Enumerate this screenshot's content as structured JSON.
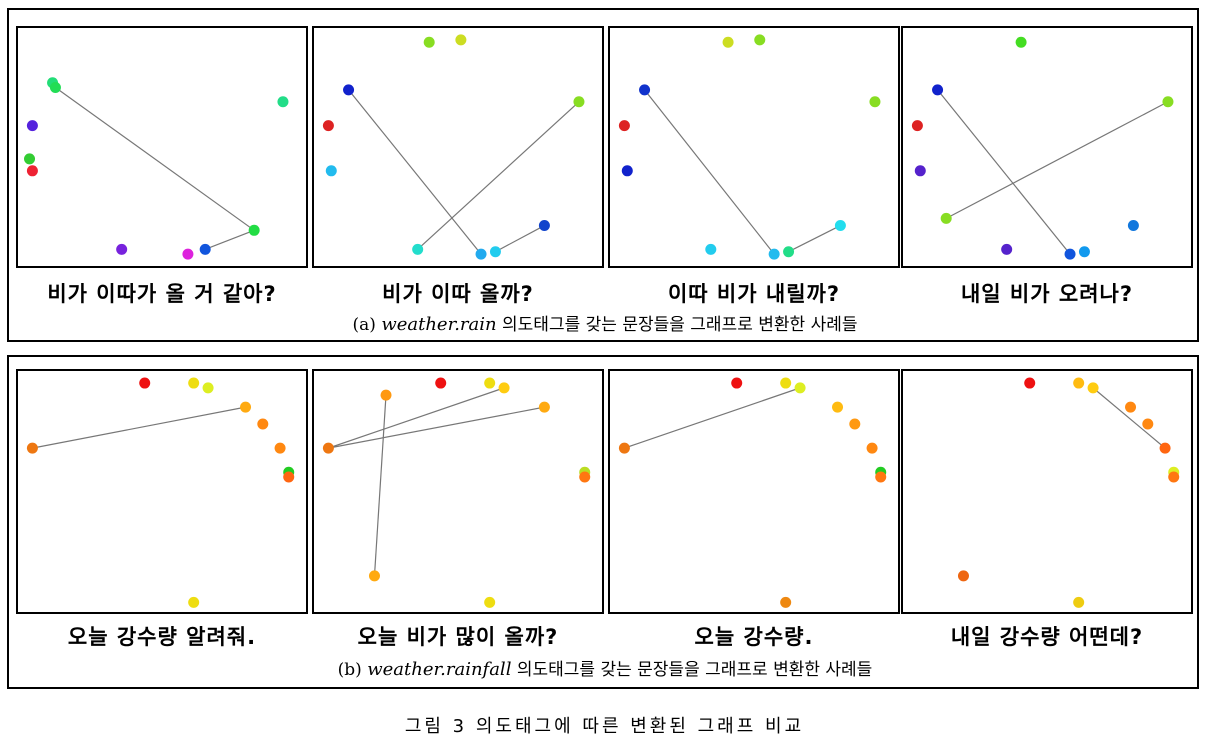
{
  "figure_caption": "그림 3 의도태그에 따른 변환된 그래프 비교",
  "groups": [
    {
      "label_prefix": "(a)",
      "tag": "weather.rain",
      "label_suffix": "의도태그를 갖는 문장들을 그래프로 변환한 사례들",
      "panels": [
        {
          "sentence": "비가 이따가 올 거 같아?"
        },
        {
          "sentence": "비가 이따 올까?"
        },
        {
          "sentence": "이따 비가 내릴까?"
        },
        {
          "sentence": "내일 비가 오려나?"
        }
      ]
    },
    {
      "label_prefix": "(b)",
      "tag": "weather.rainfall",
      "label_suffix": "의도태그를 갖는 문장들을 그래프로 변환한 사례들",
      "panels": [
        {
          "sentence": "오늘 강수량 알려줘."
        },
        {
          "sentence": "오늘 비가 많이 올까?"
        },
        {
          "sentence": "오늘 강수량."
        },
        {
          "sentence": "내일 강수량 어떤데?"
        }
      ]
    }
  ],
  "chart_data": [
    {
      "type": "scatter",
      "title": "비가 이따가 올 거 같아?",
      "points": [
        {
          "x": 0.12,
          "y": 0.23,
          "color": "#22dd77"
        },
        {
          "x": 0.13,
          "y": 0.25,
          "color": "#22dd55"
        },
        {
          "x": 0.92,
          "y": 0.31,
          "color": "#22dd88"
        },
        {
          "x": 0.05,
          "y": 0.41,
          "color": "#5522dd"
        },
        {
          "x": 0.04,
          "y": 0.55,
          "color": "#33cc33"
        },
        {
          "x": 0.05,
          "y": 0.6,
          "color": "#ee2233"
        },
        {
          "x": 0.82,
          "y": 0.85,
          "color": "#22dd44"
        },
        {
          "x": 0.36,
          "y": 0.93,
          "color": "#7722dd"
        },
        {
          "x": 0.65,
          "y": 0.93,
          "color": "#1155dd"
        },
        {
          "x": 0.59,
          "y": 0.95,
          "color": "#dd22dd"
        }
      ],
      "edges": [
        [
          1,
          6
        ],
        [
          6,
          8
        ]
      ]
    },
    {
      "type": "scatter",
      "title": "비가 이따 올까?",
      "points": [
        {
          "x": 0.4,
          "y": 0.06,
          "color": "#88dd22"
        },
        {
          "x": 0.51,
          "y": 0.05,
          "color": "#ccdd22"
        },
        {
          "x": 0.12,
          "y": 0.26,
          "color": "#1122cc"
        },
        {
          "x": 0.92,
          "y": 0.31,
          "color": "#88dd22"
        },
        {
          "x": 0.05,
          "y": 0.41,
          "color": "#dd2222"
        },
        {
          "x": 0.06,
          "y": 0.6,
          "color": "#22bbee"
        },
        {
          "x": 0.8,
          "y": 0.83,
          "color": "#1144cc"
        },
        {
          "x": 0.36,
          "y": 0.93,
          "color": "#22ddcc"
        },
        {
          "x": 0.63,
          "y": 0.94,
          "color": "#22ccee"
        },
        {
          "x": 0.58,
          "y": 0.95,
          "color": "#22aaee"
        }
      ],
      "edges": [
        [
          2,
          9
        ],
        [
          3,
          7
        ],
        [
          8,
          6
        ]
      ]
    },
    {
      "type": "scatter",
      "title": "이따 비가 내릴까?",
      "points": [
        {
          "x": 0.41,
          "y": 0.06,
          "color": "#ccdd22"
        },
        {
          "x": 0.52,
          "y": 0.05,
          "color": "#88dd22"
        },
        {
          "x": 0.12,
          "y": 0.26,
          "color": "#1133cc"
        },
        {
          "x": 0.92,
          "y": 0.31,
          "color": "#88dd22"
        },
        {
          "x": 0.05,
          "y": 0.41,
          "color": "#dd2222"
        },
        {
          "x": 0.06,
          "y": 0.6,
          "color": "#1122cc"
        },
        {
          "x": 0.8,
          "y": 0.83,
          "color": "#22ddee"
        },
        {
          "x": 0.35,
          "y": 0.93,
          "color": "#22ccee"
        },
        {
          "x": 0.62,
          "y": 0.94,
          "color": "#22dd88"
        },
        {
          "x": 0.57,
          "y": 0.95,
          "color": "#22bbee"
        }
      ],
      "edges": [
        [
          2,
          9
        ],
        [
          8,
          6
        ]
      ]
    },
    {
      "type": "scatter",
      "title": "내일 비가 오려나?",
      "points": [
        {
          "x": 0.41,
          "y": 0.06,
          "color": "#44dd22"
        },
        {
          "x": 0.12,
          "y": 0.26,
          "color": "#1122cc"
        },
        {
          "x": 0.92,
          "y": 0.31,
          "color": "#88dd22"
        },
        {
          "x": 0.05,
          "y": 0.41,
          "color": "#dd2222"
        },
        {
          "x": 0.06,
          "y": 0.6,
          "color": "#5522cc"
        },
        {
          "x": 0.15,
          "y": 0.8,
          "color": "#88dd22"
        },
        {
          "x": 0.8,
          "y": 0.83,
          "color": "#1177dd"
        },
        {
          "x": 0.36,
          "y": 0.93,
          "color": "#5522cc"
        },
        {
          "x": 0.63,
          "y": 0.94,
          "color": "#1199ee"
        },
        {
          "x": 0.58,
          "y": 0.95,
          "color": "#1155dd"
        }
      ],
      "edges": [
        [
          1,
          9
        ],
        [
          5,
          2
        ]
      ]
    },
    {
      "type": "scatter",
      "title": "오늘 강수량 알려줘.",
      "points": [
        {
          "x": 0.44,
          "y": 0.05,
          "color": "#ee1111"
        },
        {
          "x": 0.61,
          "y": 0.05,
          "color": "#eedd11"
        },
        {
          "x": 0.66,
          "y": 0.07,
          "color": "#ddee22"
        },
        {
          "x": 0.79,
          "y": 0.15,
          "color": "#ffaa11"
        },
        {
          "x": 0.85,
          "y": 0.22,
          "color": "#ff8811"
        },
        {
          "x": 0.91,
          "y": 0.32,
          "color": "#ff8811"
        },
        {
          "x": 0.05,
          "y": 0.32,
          "color": "#ee7711"
        },
        {
          "x": 0.94,
          "y": 0.42,
          "color": "#22cc22"
        },
        {
          "x": 0.94,
          "y": 0.44,
          "color": "#ff6611"
        },
        {
          "x": 0.61,
          "y": 0.96,
          "color": "#eedd11"
        }
      ],
      "edges": [
        [
          6,
          3
        ]
      ]
    },
    {
      "type": "scatter",
      "title": "오늘 비가 많이 올까?",
      "points": [
        {
          "x": 0.44,
          "y": 0.05,
          "color": "#ee1111"
        },
        {
          "x": 0.61,
          "y": 0.05,
          "color": "#eedd11"
        },
        {
          "x": 0.66,
          "y": 0.07,
          "color": "#ffcc11"
        },
        {
          "x": 0.8,
          "y": 0.15,
          "color": "#ffaa11"
        },
        {
          "x": 0.25,
          "y": 0.1,
          "color": "#ff9911"
        },
        {
          "x": 0.05,
          "y": 0.32,
          "color": "#ee7711"
        },
        {
          "x": 0.94,
          "y": 0.42,
          "color": "#bbdd22"
        },
        {
          "x": 0.94,
          "y": 0.44,
          "color": "#ff7711"
        },
        {
          "x": 0.21,
          "y": 0.85,
          "color": "#ffaa11"
        },
        {
          "x": 0.61,
          "y": 0.96,
          "color": "#eedd11"
        }
      ],
      "edges": [
        [
          5,
          2
        ],
        [
          5,
          3
        ],
        [
          4,
          8
        ]
      ]
    },
    {
      "type": "scatter",
      "title": "오늘 강수량.",
      "points": [
        {
          "x": 0.44,
          "y": 0.05,
          "color": "#ee1111"
        },
        {
          "x": 0.61,
          "y": 0.05,
          "color": "#eedd11"
        },
        {
          "x": 0.66,
          "y": 0.07,
          "color": "#ddee22"
        },
        {
          "x": 0.79,
          "y": 0.15,
          "color": "#ffbb11"
        },
        {
          "x": 0.85,
          "y": 0.22,
          "color": "#ff9911"
        },
        {
          "x": 0.91,
          "y": 0.32,
          "color": "#ff8811"
        },
        {
          "x": 0.05,
          "y": 0.32,
          "color": "#ee7711"
        },
        {
          "x": 0.94,
          "y": 0.42,
          "color": "#22cc22"
        },
        {
          "x": 0.94,
          "y": 0.44,
          "color": "#ff7711"
        },
        {
          "x": 0.61,
          "y": 0.96,
          "color": "#ee8811"
        }
      ],
      "edges": [
        [
          6,
          2
        ]
      ]
    },
    {
      "type": "scatter",
      "title": "내일 강수량 어떤데?",
      "points": [
        {
          "x": 0.44,
          "y": 0.05,
          "color": "#ee1111"
        },
        {
          "x": 0.61,
          "y": 0.05,
          "color": "#ffbb11"
        },
        {
          "x": 0.66,
          "y": 0.07,
          "color": "#ffcc11"
        },
        {
          "x": 0.79,
          "y": 0.15,
          "color": "#ff8811"
        },
        {
          "x": 0.85,
          "y": 0.22,
          "color": "#ff8811"
        },
        {
          "x": 0.91,
          "y": 0.32,
          "color": "#ff6611"
        },
        {
          "x": 0.94,
          "y": 0.42,
          "color": "#ddee22"
        },
        {
          "x": 0.94,
          "y": 0.44,
          "color": "#ff7711"
        },
        {
          "x": 0.21,
          "y": 0.85,
          "color": "#ee6611"
        },
        {
          "x": 0.61,
          "y": 0.96,
          "color": "#eecc11"
        }
      ],
      "edges": [
        [
          2,
          5
        ]
      ]
    }
  ]
}
